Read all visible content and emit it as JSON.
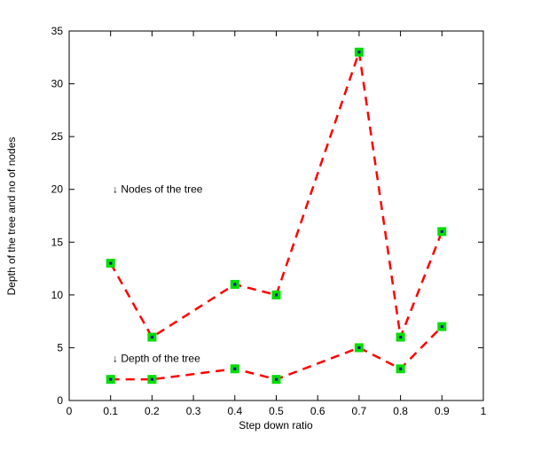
{
  "figure": {
    "background": "#ffffff"
  },
  "chart_data": {
    "type": "line",
    "title": "",
    "xlabel": "Step down ratio",
    "ylabel": "Depth of the tree and no of nodes",
    "xlim": [
      0,
      1
    ],
    "ylim": [
      0,
      35
    ],
    "grid": false,
    "legend": "none",
    "xticks": [
      0,
      0.1,
      0.2,
      0.3,
      0.4,
      0.5,
      0.6,
      0.7,
      0.8,
      0.9,
      1
    ],
    "xtick_labels": [
      "0",
      "0.1",
      "0.2",
      "0.3",
      "0.4",
      "0.5",
      "0.6",
      "0.7",
      "0.8",
      "0.9",
      "1"
    ],
    "yticks": [
      0,
      5,
      10,
      15,
      20,
      25,
      30,
      35
    ],
    "ytick_labels": [
      "0",
      "5",
      "10",
      "15",
      "20",
      "25",
      "30",
      "35"
    ],
    "x": [
      0.1,
      0.2,
      0.4,
      0.5,
      0.7,
      0.8,
      0.9
    ],
    "series": [
      {
        "name": "Nodes of the tree",
        "values": [
          13,
          6,
          11,
          10,
          33,
          6,
          16
        ]
      },
      {
        "name": "Depth of the tree",
        "values": [
          2,
          2,
          3,
          2,
          5,
          3,
          7
        ]
      }
    ],
    "line_color": "#ff0000",
    "line_style": "dashed",
    "line_width": 2.5,
    "marker": {
      "shape": "square",
      "size": 10,
      "fill_color": "#00dd00",
      "center_color": "#0000a0"
    },
    "annotations": [
      {
        "text": "↓ Nodes of the tree",
        "x": 0.105,
        "y": 20
      },
      {
        "text": "↓ Depth of the tree",
        "x": 0.105,
        "y": 4
      }
    ],
    "axis_color": "#000000"
  }
}
